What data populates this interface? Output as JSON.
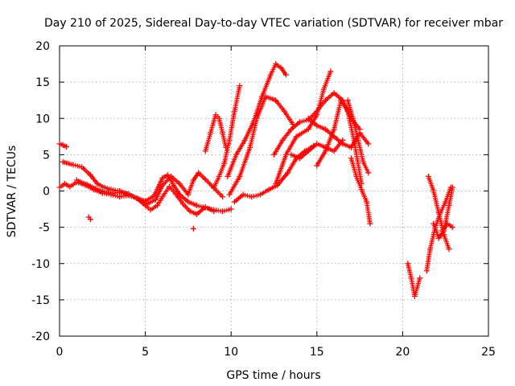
{
  "chart_data": {
    "type": "scatter",
    "title": "Day 210 of 2025, Sidereal Day-to-day VTEC variation (SDTVAR) for receiver mbar",
    "xlabel": "GPS time / hours",
    "ylabel": "SDTVAR / TECUs",
    "xlim": [
      0,
      25
    ],
    "ylim": [
      -20,
      20
    ],
    "x_ticks": [
      0,
      5,
      10,
      15,
      20,
      25
    ],
    "y_ticks": [
      -20,
      -15,
      -10,
      -5,
      0,
      5,
      10,
      15,
      20
    ],
    "grid": true,
    "marker": "+",
    "color": "#ff0000",
    "series": [
      {
        "name": "s1",
        "x": [
          0.0,
          0.3,
          0.6,
          1.0,
          1.5,
          2.0,
          2.5,
          3.0,
          3.5,
          4.0,
          4.5,
          5.0,
          5.5,
          6.0,
          6.3,
          6.6,
          7.0,
          7.5,
          8.0,
          8.5,
          9.0,
          9.5,
          10.0
        ],
        "y": [
          0.5,
          1.0,
          0.6,
          1.2,
          0.8,
          0.2,
          -0.3,
          -0.5,
          -0.8,
          -0.6,
          -1.0,
          -1.4,
          -0.7,
          1.8,
          2.2,
          1.0,
          -0.5,
          -1.5,
          -2.0,
          -2.3,
          -2.6,
          -2.8,
          -2.5
        ]
      },
      {
        "name": "s2",
        "x": [
          0.2,
          0.8,
          1.3,
          1.8,
          2.2,
          2.6,
          3.0,
          3.5,
          4.0,
          4.5,
          5.0,
          5.3,
          5.7,
          6.0,
          6.4,
          6.8,
          7.2,
          7.6,
          8.0,
          8.5,
          9.0
        ],
        "y": [
          4.0,
          3.6,
          3.3,
          2.2,
          1.0,
          0.5,
          0.2,
          0.0,
          -0.4,
          -1.0,
          -2.0,
          -2.6,
          -2.0,
          -0.8,
          0.6,
          -0.5,
          -1.8,
          -2.8,
          -3.2,
          -2.2,
          -2.8
        ]
      },
      {
        "name": "s3",
        "x": [
          0.0,
          0.2,
          0.4
        ],
        "y": [
          6.5,
          6.3,
          6.1
        ]
      },
      {
        "name": "s4",
        "x": [
          1.7,
          1.8
        ],
        "y": [
          -3.6,
          -3.9
        ]
      },
      {
        "name": "s5",
        "x": [
          7.8
        ],
        "y": [
          -5.2
        ]
      },
      {
        "name": "s6",
        "x": [
          1.0,
          1.6,
          2.1,
          2.6,
          3.1,
          3.6,
          4.1,
          4.6,
          5.1,
          5.6,
          6.0,
          6.5,
          7.0,
          7.5,
          7.8,
          8.1,
          8.5,
          9.0,
          9.5
        ],
        "y": [
          1.5,
          0.9,
          0.3,
          -0.1,
          -0.3,
          -0.2,
          -0.5,
          -1.1,
          -1.8,
          -1.2,
          0.8,
          2.0,
          1.0,
          -0.5,
          1.5,
          2.5,
          1.6,
          0.4,
          -0.8
        ]
      },
      {
        "name": "s7",
        "x": [
          8.5,
          8.8,
          9.1,
          9.3,
          9.5,
          9.7
        ],
        "y": [
          5.5,
          8.0,
          10.5,
          10.0,
          8.0,
          6.0
        ]
      },
      {
        "name": "s8",
        "x": [
          9.0,
          9.3,
          9.6,
          9.9,
          10.2,
          10.5
        ],
        "y": [
          0.5,
          2.0,
          3.8,
          7.0,
          11.0,
          14.5
        ]
      },
      {
        "name": "s9",
        "x": [
          9.8,
          10.3,
          10.8,
          11.3,
          11.8,
          12.3,
          12.6,
          12.9,
          13.2
        ],
        "y": [
          2.0,
          5.0,
          7.0,
          9.5,
          13.0,
          16.0,
          17.5,
          17.0,
          16.0
        ]
      },
      {
        "name": "s10",
        "x": [
          9.9,
          10.5,
          11.1,
          11.5,
          12.0,
          12.6,
          13.1,
          13.6
        ],
        "y": [
          -0.5,
          2.0,
          6.0,
          10.0,
          13.0,
          12.5,
          11.0,
          9.2
        ]
      },
      {
        "name": "s11",
        "x": [
          10.2,
          10.7,
          11.2,
          11.7,
          12.2,
          12.7,
          13.3,
          13.8,
          14.3,
          14.8
        ],
        "y": [
          -1.5,
          -0.5,
          -0.8,
          -0.5,
          0.2,
          0.8,
          2.5,
          4.5,
          5.5,
          6.2
        ]
      },
      {
        "name": "s12",
        "x": [
          12.5,
          13.0,
          13.5,
          14.0,
          14.5,
          15.0,
          15.5,
          16.0,
          16.5,
          17.0,
          17.5
        ],
        "y": [
          5.0,
          7.0,
          8.5,
          9.5,
          9.8,
          11.0,
          12.5,
          13.5,
          12.5,
          10.0,
          8.5
        ]
      },
      {
        "name": "s13",
        "x": [
          12.6,
          13.2,
          13.8,
          14.5,
          15.0,
          15.4,
          15.8
        ],
        "y": [
          1.0,
          5.0,
          7.5,
          8.5,
          10.5,
          14.0,
          16.5
        ]
      },
      {
        "name": "s14",
        "x": [
          13.5,
          14.0,
          14.5,
          15.0,
          15.5,
          16.0,
          16.5
        ],
        "y": [
          5.0,
          4.5,
          5.5,
          6.5,
          6.0,
          5.5,
          7.0
        ]
      },
      {
        "name": "s15",
        "x": [
          14.5,
          15.0,
          15.5,
          16.0,
          16.5,
          17.0,
          17.5,
          18.0
        ],
        "y": [
          10.0,
          9.0,
          8.5,
          7.5,
          6.5,
          6.0,
          8.0,
          6.5
        ]
      },
      {
        "name": "s16",
        "x": [
          15.0,
          15.5,
          16.0,
          16.4,
          16.8,
          17.2,
          17.6
        ],
        "y": [
          3.5,
          5.5,
          8.5,
          12.5,
          11.0,
          6.5,
          1.0
        ]
      },
      {
        "name": "s17",
        "x": [
          16.8,
          17.1,
          17.4,
          17.7,
          18.0
        ],
        "y": [
          12.5,
          10.0,
          7.0,
          4.0,
          2.5
        ]
      },
      {
        "name": "s18",
        "x": [
          17.0,
          17.3,
          17.6,
          17.9,
          18.1
        ],
        "y": [
          4.5,
          2.0,
          0.2,
          -1.5,
          -4.5
        ]
      },
      {
        "name": "s19",
        "x": [
          20.3,
          20.5,
          20.7,
          21.0
        ],
        "y": [
          -10.0,
          -12.0,
          -14.5,
          -12.0
        ]
      },
      {
        "name": "s20",
        "x": [
          21.4,
          21.6,
          21.9,
          22.2,
          22.5,
          22.8
        ],
        "y": [
          -11.0,
          -8.0,
          -5.0,
          -3.0,
          -1.5,
          0.5
        ]
      },
      {
        "name": "s21",
        "x": [
          21.5,
          21.8,
          22.1,
          22.4,
          22.7
        ],
        "y": [
          2.0,
          0.0,
          -3.0,
          -6.0,
          -8.0
        ]
      },
      {
        "name": "s22",
        "x": [
          21.8,
          22.1,
          22.4,
          22.7,
          22.9
        ],
        "y": [
          -4.5,
          -6.5,
          -5.5,
          -2.0,
          0.5
        ]
      },
      {
        "name": "s23",
        "x": [
          22.3,
          22.6,
          22.9
        ],
        "y": [
          -5.5,
          -4.5,
          -5.0
        ]
      }
    ]
  }
}
